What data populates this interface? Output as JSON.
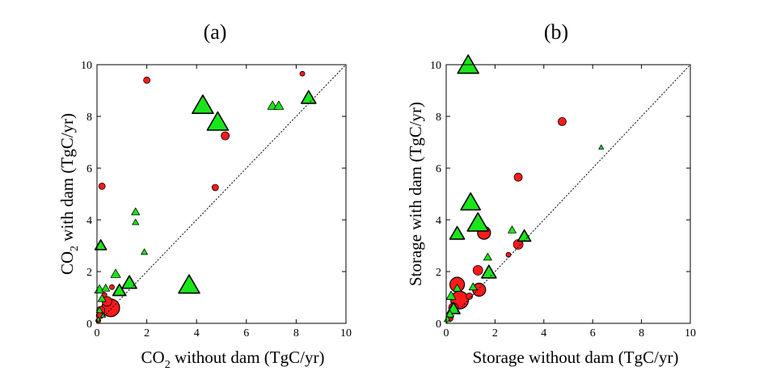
{
  "colors": {
    "circle": "#ff1a1a",
    "triangle": "#19e619",
    "outline": "#000000"
  },
  "chart_data": [
    {
      "type": "scatter",
      "title": "(a)",
      "xlabel_pre": "CO",
      "xlabel_sub": "2",
      "xlabel_post": " without dam (TgC/yr)",
      "ylabel_pre": "CO",
      "ylabel_sub": "2",
      "ylabel_post": " with dam (TgC/yr)",
      "xlim": [
        0,
        10
      ],
      "ylim": [
        0,
        10
      ],
      "xticks": [
        "0",
        "2",
        "4",
        "6",
        "8",
        "10"
      ],
      "yticks": [
        "0",
        "2",
        "4",
        "6",
        "8",
        "10"
      ],
      "one_to_one_line": true,
      "grid": false,
      "series": [
        {
          "marker": "circle",
          "points": [
            {
              "x": 0.2,
              "y": 5.3,
              "size": 4
            },
            {
              "x": 2.0,
              "y": 9.4,
              "size": 4
            },
            {
              "x": 8.25,
              "y": 9.65,
              "size": 3
            },
            {
              "x": 5.15,
              "y": 7.25,
              "size": 5
            },
            {
              "x": 4.75,
              "y": 5.25,
              "size": 4
            },
            {
              "x": 0.55,
              "y": 0.6,
              "size": 11
            },
            {
              "x": 0.4,
              "y": 0.85,
              "size": 6
            },
            {
              "x": 0.15,
              "y": 0.5,
              "size": 5
            },
            {
              "x": 0.1,
              "y": 0.3,
              "size": 4
            },
            {
              "x": 0.6,
              "y": 1.4,
              "size": 3
            },
            {
              "x": 0.3,
              "y": 1.1,
              "size": 3
            },
            {
              "x": 0.05,
              "y": 0.1,
              "size": 3
            }
          ]
        },
        {
          "marker": "triangle",
          "points": [
            {
              "x": 4.25,
              "y": 8.4,
              "size": 13
            },
            {
              "x": 4.85,
              "y": 7.75,
              "size": 13
            },
            {
              "x": 7.05,
              "y": 8.4,
              "size": 6
            },
            {
              "x": 7.3,
              "y": 8.4,
              "size": 6
            },
            {
              "x": 8.5,
              "y": 8.7,
              "size": 9
            },
            {
              "x": 1.55,
              "y": 4.3,
              "size": 5
            },
            {
              "x": 1.55,
              "y": 3.9,
              "size": 4
            },
            {
              "x": 1.9,
              "y": 2.75,
              "size": 4
            },
            {
              "x": 3.7,
              "y": 1.45,
              "size": 13
            },
            {
              "x": 0.15,
              "y": 3.0,
              "size": 7
            },
            {
              "x": 0.75,
              "y": 1.9,
              "size": 6
            },
            {
              "x": 1.3,
              "y": 1.55,
              "size": 9
            },
            {
              "x": 0.9,
              "y": 1.25,
              "size": 8
            },
            {
              "x": 0.1,
              "y": 1.3,
              "size": 6
            },
            {
              "x": 0.35,
              "y": 1.35,
              "size": 5
            },
            {
              "x": 0.2,
              "y": 0.95,
              "size": 5
            },
            {
              "x": 0.1,
              "y": 0.5,
              "size": 4
            },
            {
              "x": 0.25,
              "y": 0.3,
              "size": 3
            },
            {
              "x": 0.05,
              "y": 0.15,
              "size": 3
            }
          ]
        }
      ]
    },
    {
      "type": "scatter",
      "title": "(b)",
      "xlabel_pre": "Storage without dam (TgC/yr)",
      "xlabel_sub": "",
      "xlabel_post": "",
      "ylabel_pre": "Storage with dam (TgC/yr)",
      "ylabel_sub": "",
      "ylabel_post": "",
      "xlim": [
        0,
        10
      ],
      "ylim": [
        0,
        10
      ],
      "xticks": [
        "0",
        "2",
        "4",
        "6",
        "8",
        "10"
      ],
      "yticks": [
        "0",
        "2",
        "4",
        "6",
        "8",
        "10"
      ],
      "one_to_one_line": true,
      "grid": false,
      "series": [
        {
          "marker": "circle",
          "points": [
            {
              "x": 4.75,
              "y": 7.8,
              "size": 5
            },
            {
              "x": 2.95,
              "y": 5.65,
              "size": 5
            },
            {
              "x": 2.95,
              "y": 3.05,
              "size": 6
            },
            {
              "x": 2.55,
              "y": 2.65,
              "size": 3
            },
            {
              "x": 1.55,
              "y": 3.5,
              "size": 8
            },
            {
              "x": 1.3,
              "y": 2.05,
              "size": 6
            },
            {
              "x": 1.35,
              "y": 1.3,
              "size": 8
            },
            {
              "x": 0.45,
              "y": 1.5,
              "size": 9
            },
            {
              "x": 0.55,
              "y": 0.9,
              "size": 11
            },
            {
              "x": 0.3,
              "y": 0.6,
              "size": 6
            },
            {
              "x": 0.95,
              "y": 1.05,
              "size": 4
            },
            {
              "x": 0.15,
              "y": 0.2,
              "size": 4
            }
          ]
        },
        {
          "marker": "triangle",
          "points": [
            {
              "x": 0.9,
              "y": 9.95,
              "size": 13
            },
            {
              "x": 1.0,
              "y": 4.65,
              "size": 12
            },
            {
              "x": 1.3,
              "y": 3.85,
              "size": 13
            },
            {
              "x": 0.45,
              "y": 3.45,
              "size": 9
            },
            {
              "x": 6.35,
              "y": 6.8,
              "size": 3
            },
            {
              "x": 2.7,
              "y": 3.6,
              "size": 5
            },
            {
              "x": 3.2,
              "y": 3.35,
              "size": 8
            },
            {
              "x": 1.7,
              "y": 2.55,
              "size": 5
            },
            {
              "x": 1.75,
              "y": 1.95,
              "size": 9
            },
            {
              "x": 0.2,
              "y": 1.05,
              "size": 6
            },
            {
              "x": 0.3,
              "y": 0.55,
              "size": 8
            },
            {
              "x": 0.15,
              "y": 0.35,
              "size": 5
            },
            {
              "x": 0.05,
              "y": 0.15,
              "size": 4
            },
            {
              "x": 0.45,
              "y": 1.35,
              "size": 5
            },
            {
              "x": 1.1,
              "y": 1.4,
              "size": 5
            }
          ]
        }
      ]
    }
  ]
}
